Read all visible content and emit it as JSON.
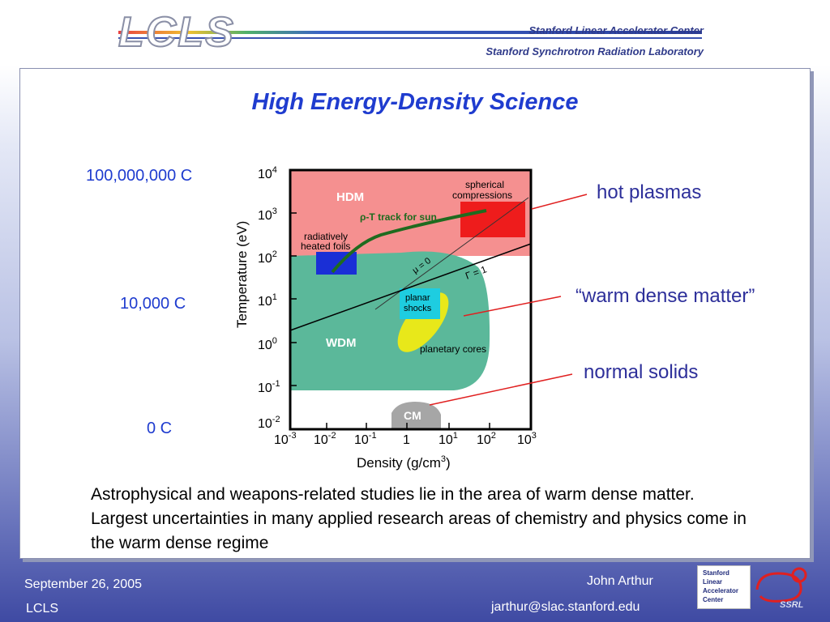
{
  "header": {
    "logo": "LCLS",
    "org1": "Stanford Linear Accelerator Center",
    "org2": "Stanford Synchrotron Radiation Laboratory"
  },
  "slide": {
    "title": "High Energy-Density Science",
    "temp_labels": [
      "100,000,000 C",
      "10,000 C",
      "0 C"
    ],
    "callouts": {
      "hot": "hot plasmas",
      "wdm": "“warm dense matter”",
      "solids": "normal solids"
    },
    "caption": "Astrophysical and weapons-related studies lie in the area of warm dense matter.  Largest uncertainties in many applied research areas of chemistry and physics come in the warm dense regime"
  },
  "diagram": {
    "y_axis_label": "Temperature (eV)",
    "x_axis_label": "Density (g/cm",
    "x_axis_unit_exp": "3",
    "x_axis_label_close": ")",
    "x_ticks": [
      {
        "base": "10",
        "exp": "-3"
      },
      {
        "base": "10",
        "exp": "-2"
      },
      {
        "base": "10",
        "exp": "-1"
      },
      {
        "base": "1",
        "exp": ""
      },
      {
        "base": "10",
        "exp": "1"
      },
      {
        "base": "10",
        "exp": "2"
      },
      {
        "base": "10",
        "exp": "3"
      }
    ],
    "y_ticks": [
      {
        "base": "10",
        "exp": "4"
      },
      {
        "base": "10",
        "exp": "3"
      },
      {
        "base": "10",
        "exp": "2"
      },
      {
        "base": "10",
        "exp": "1"
      },
      {
        "base": "10",
        "exp": "0"
      },
      {
        "base": "10",
        "exp": "-1"
      },
      {
        "base": "10",
        "exp": "-2"
      }
    ],
    "regions": {
      "hdm": "HDM",
      "wdm": "WDM",
      "cm": "CM",
      "spherical_1": "spherical",
      "spherical_2": "compressions",
      "rho_t_track": "ρ-T track for sun",
      "radiative_1": "radiatively",
      "radiative_2": "heated foils",
      "mu": "μ = 0",
      "gamma": "Γ = 1",
      "planar_1": "planar",
      "planar_2": "shocks",
      "planetary": "planetary cores"
    },
    "colors": {
      "hdm": "#f59090",
      "wdm": "#5bb89a",
      "red_box": "#ee1c1c",
      "blue_box": "#1a2fd6",
      "cyan_box": "#1ecde0",
      "yellow": "#e8e81a",
      "cm": "#a6a6a6",
      "sun_track": "#1f6b1f",
      "callout_line": "#e02020"
    }
  },
  "footer": {
    "date": "September 26, 2005",
    "program": "LCLS",
    "author": "John Arthur",
    "email": "jarthur@slac.stanford.edu",
    "badge_lines": [
      "Stanford",
      "Linear",
      "Accelerator",
      "Center"
    ],
    "ssrl": "SSRL"
  }
}
